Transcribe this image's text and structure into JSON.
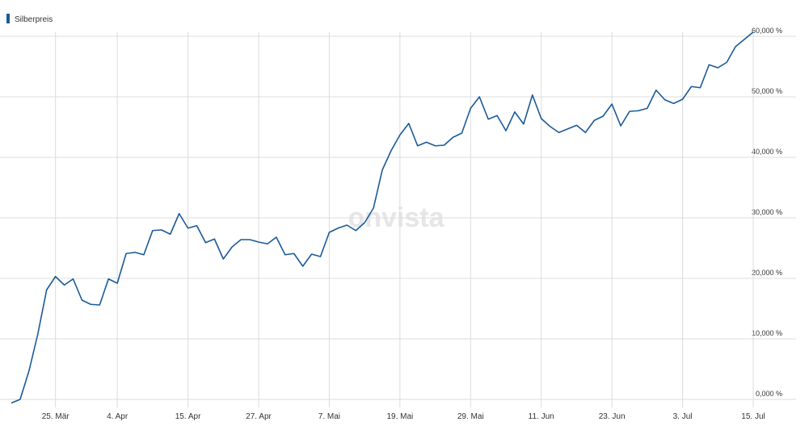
{
  "chart_data": {
    "type": "line",
    "legend": "top-left",
    "grid": true,
    "watermark": "onvista",
    "categories": [
      null,
      null,
      null,
      null,
      null,
      "25. Mär",
      null,
      null,
      null,
      null,
      null,
      null,
      "4. Apr",
      null,
      null,
      null,
      null,
      null,
      null,
      null,
      "15. Apr",
      null,
      null,
      null,
      null,
      null,
      null,
      null,
      "27. Apr",
      null,
      null,
      null,
      null,
      null,
      null,
      null,
      "7. Mai",
      null,
      null,
      null,
      null,
      null,
      null,
      null,
      "19. Mai",
      null,
      null,
      null,
      null,
      null,
      null,
      null,
      "29. Mai",
      null,
      null,
      null,
      null,
      null,
      null,
      null,
      "11. Jun",
      null,
      null,
      null,
      null,
      null,
      null,
      null,
      "23. Jun",
      null,
      null,
      null,
      null,
      null,
      null,
      null,
      "3. Jul",
      null,
      null,
      null,
      null,
      null,
      null,
      null,
      "15. Jul"
    ],
    "series": [
      {
        "name": "Silberpreis",
        "color": "#1a5a9a",
        "values": [
          -600,
          0,
          4700,
          10800,
          18100,
          20300,
          18900,
          19900,
          16400,
          15700,
          15600,
          19900,
          19200,
          24100,
          24300,
          23900,
          27900,
          28000,
          27300,
          30700,
          28300,
          28700,
          25900,
          26500,
          23200,
          25200,
          26400,
          26400,
          26000,
          25700,
          26800,
          23900,
          24100,
          22000,
          24000,
          23600,
          27600,
          28300,
          28800,
          27900,
          29200,
          31600,
          37900,
          41100,
          43700,
          45600,
          41900,
          42500,
          41900,
          42000,
          43300,
          44000,
          48100,
          50000,
          46300,
          46900,
          44400,
          47500,
          45500,
          50300,
          46400,
          45100,
          44100,
          44700,
          45300,
          44100,
          46100,
          46800,
          48800,
          45200,
          47600,
          47700,
          48100,
          51100,
          49500,
          48900,
          49600,
          51700,
          51500,
          55300,
          54800,
          55700,
          58300,
          59500,
          60700
        ]
      }
    ],
    "ylim": [
      -1000,
      62000
    ],
    "yticks": [
      {
        "value": 0,
        "label": "0,000 %"
      },
      {
        "value": 10000,
        "label": "10,000 %"
      },
      {
        "value": 20000,
        "label": "20,000 %"
      },
      {
        "value": 30000,
        "label": "30,000 %"
      },
      {
        "value": 40000,
        "label": "40,000 %"
      },
      {
        "value": 50000,
        "label": "50,000 %"
      },
      {
        "value": 60000,
        "label": "60,000 %"
      }
    ]
  }
}
